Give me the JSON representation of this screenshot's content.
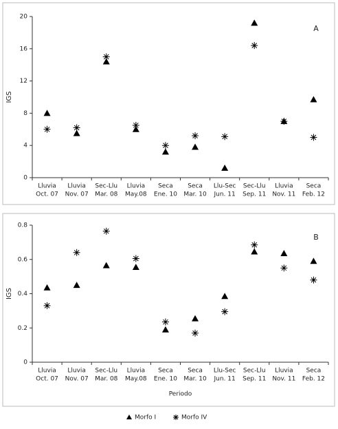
{
  "chart_data": [
    {
      "type": "scatter",
      "annotation": "A",
      "ylabel": "IGS",
      "categories": [
        [
          "Lluvia",
          "Oct. 07"
        ],
        [
          "Lluvia",
          "Nov. 07"
        ],
        [
          "Sec-Llu",
          "Mar. 08"
        ],
        [
          "Lluvia",
          "May.08"
        ],
        [
          "Seca",
          "Ene. 10"
        ],
        [
          "Seca",
          "Mar. 10"
        ],
        [
          "Llu-Sec",
          "Jun. 11"
        ],
        [
          "Sec-Llu",
          "Sep. 11"
        ],
        [
          "Lluvia",
          "Nov. 11"
        ],
        [
          "Seca",
          "Feb. 12"
        ]
      ],
      "series": [
        {
          "name": "Morfo I",
          "color": "#000000",
          "marker": "triangle",
          "values": [
            8.0,
            5.5,
            14.4,
            6.0,
            3.2,
            3.8,
            1.2,
            19.2,
            7.0,
            9.7
          ]
        },
        {
          "name": "Morfo IV",
          "color": "#000000",
          "marker": "asterisk",
          "values": [
            6.0,
            6.2,
            15.0,
            6.5,
            4.0,
            5.2,
            5.1,
            16.4,
            7.0,
            5.0
          ]
        }
      ],
      "ylim": [
        0,
        20
      ],
      "yticks": [
        0,
        4,
        8,
        12,
        16,
        20
      ]
    },
    {
      "type": "scatter",
      "annotation": "B",
      "ylabel": "IGS",
      "xlabel": "Periodo",
      "categories": [
        [
          "Lluvia",
          "Oct. 07"
        ],
        [
          "Lluvia",
          "Nov. 07"
        ],
        [
          "Sec-Llu",
          "Mar. 08"
        ],
        [
          "Lluvia",
          "May.08"
        ],
        [
          "Seca",
          "Ene. 10"
        ],
        [
          "Seca",
          "Mar. 10"
        ],
        [
          "Llu-Sec",
          "Jun. 11"
        ],
        [
          "Sec-Llu",
          "Sep. 11"
        ],
        [
          "Lluvia",
          "Nov. 11"
        ],
        [
          "Seca",
          "Feb. 12"
        ]
      ],
      "series": [
        {
          "name": "Morfo I",
          "color": "#000000",
          "marker": "triangle",
          "values": [
            0.435,
            0.45,
            0.565,
            0.555,
            0.19,
            0.255,
            0.385,
            0.645,
            0.635,
            0.59
          ]
        },
        {
          "name": "Morfo IV",
          "color": "#000000",
          "marker": "asterisk",
          "values": [
            0.33,
            0.64,
            0.765,
            0.605,
            0.235,
            0.17,
            0.295,
            0.685,
            0.55,
            0.48
          ]
        }
      ],
      "ylim": [
        0,
        0.8
      ],
      "yticks": [
        0,
        0.2,
        0.4,
        0.6,
        0.8
      ]
    }
  ]
}
